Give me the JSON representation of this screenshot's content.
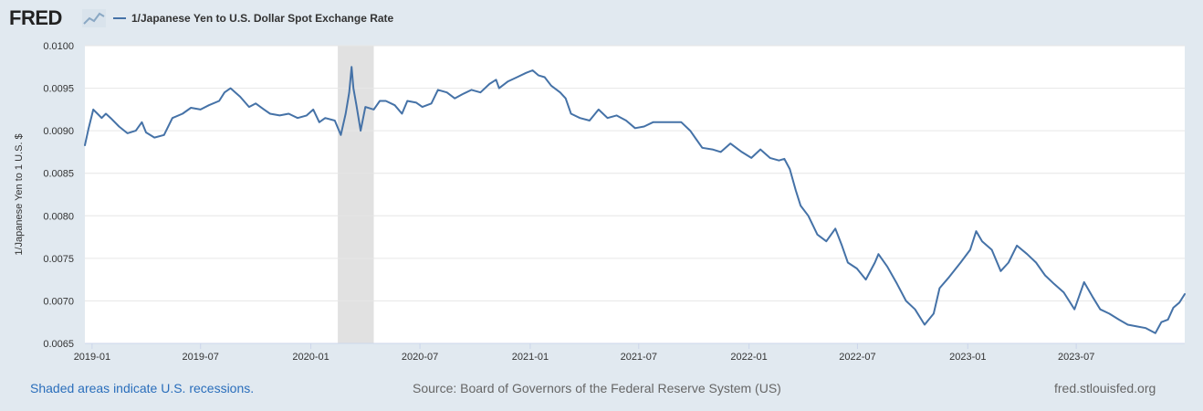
{
  "header": {
    "logo_text": "FRED",
    "logo_icon": "line-chart-icon",
    "legend_label": "1/Japanese Yen to U.S. Dollar Spot Exchange Rate",
    "legend_color": "#4572a7"
  },
  "footer": {
    "recessions_note": "Shaded areas indicate U.S. recessions.",
    "source": "Source: Board of Governors of the Federal Reserve System (US)",
    "site": "fred.stlouisfed.org"
  },
  "colors": {
    "page_background": "#e1e9f0",
    "plot_background": "#ffffff",
    "series": "#4572a7",
    "recession_band": "#e1e1e1",
    "gridline": "#e6e6e6"
  },
  "chart_data": {
    "type": "line",
    "title": "",
    "xlabel": "",
    "ylabel": "1/Japanese Yen to 1 U.S. $",
    "ylim": [
      0.0065,
      0.01
    ],
    "xlim": [
      "2018-12-20",
      "2023-12-29"
    ],
    "yticks": [
      "0.0065",
      "0.0070",
      "0.0075",
      "0.0080",
      "0.0085",
      "0.0090",
      "0.0095",
      "0.0100"
    ],
    "xticks": [
      "2019-01",
      "2019-07",
      "2020-01",
      "2020-07",
      "2021-01",
      "2021-07",
      "2022-01",
      "2022-07",
      "2023-01",
      "2023-07"
    ],
    "grid": true,
    "legend_position": "top-left",
    "recessions": [
      {
        "start": "2020-02-15",
        "end": "2020-04-15"
      }
    ],
    "series": [
      {
        "name": "1/Japanese Yen to U.S. Dollar Spot Exchange Rate",
        "points": [
          [
            "2018-12-20",
            0.00883
          ],
          [
            "2018-12-26",
            0.00902
          ],
          [
            "2019-01-03",
            0.00925
          ],
          [
            "2019-01-10",
            0.0092
          ],
          [
            "2019-01-17",
            0.00915
          ],
          [
            "2019-01-24",
            0.0092
          ],
          [
            "2019-02-01",
            0.00915
          ],
          [
            "2019-02-15",
            0.00905
          ],
          [
            "2019-03-01",
            0.00897
          ],
          [
            "2019-03-15",
            0.009
          ],
          [
            "2019-03-25",
            0.0091
          ],
          [
            "2019-04-01",
            0.00898
          ],
          [
            "2019-04-15",
            0.00892
          ],
          [
            "2019-05-01",
            0.00895
          ],
          [
            "2019-05-15",
            0.00915
          ],
          [
            "2019-06-01",
            0.0092
          ],
          [
            "2019-06-15",
            0.00927
          ],
          [
            "2019-07-01",
            0.00925
          ],
          [
            "2019-07-15",
            0.0093
          ],
          [
            "2019-08-01",
            0.00935
          ],
          [
            "2019-08-10",
            0.00945
          ],
          [
            "2019-08-20",
            0.0095
          ],
          [
            "2019-08-28",
            0.00945
          ],
          [
            "2019-09-05",
            0.0094
          ],
          [
            "2019-09-20",
            0.00928
          ],
          [
            "2019-10-01",
            0.00932
          ],
          [
            "2019-10-15",
            0.00925
          ],
          [
            "2019-10-25",
            0.0092
          ],
          [
            "2019-11-10",
            0.00918
          ],
          [
            "2019-11-25",
            0.0092
          ],
          [
            "2019-12-10",
            0.00915
          ],
          [
            "2019-12-25",
            0.00918
          ],
          [
            "2020-01-05",
            0.00925
          ],
          [
            "2020-01-15",
            0.0091
          ],
          [
            "2020-01-25",
            0.00915
          ],
          [
            "2020-02-10",
            0.00912
          ],
          [
            "2020-02-20",
            0.00895
          ],
          [
            "2020-02-28",
            0.0092
          ],
          [
            "2020-03-05",
            0.00945
          ],
          [
            "2020-03-09",
            0.00975
          ],
          [
            "2020-03-12",
            0.0095
          ],
          [
            "2020-03-17",
            0.0093
          ],
          [
            "2020-03-24",
            0.009
          ],
          [
            "2020-04-01",
            0.00928
          ],
          [
            "2020-04-15",
            0.00925
          ],
          [
            "2020-04-25",
            0.00935
          ],
          [
            "2020-05-05",
            0.00935
          ],
          [
            "2020-05-20",
            0.0093
          ],
          [
            "2020-06-01",
            0.0092
          ],
          [
            "2020-06-10",
            0.00935
          ],
          [
            "2020-06-25",
            0.00933
          ],
          [
            "2020-07-05",
            0.00928
          ],
          [
            "2020-07-20",
            0.00932
          ],
          [
            "2020-07-31",
            0.00948
          ],
          [
            "2020-08-15",
            0.00945
          ],
          [
            "2020-08-28",
            0.00938
          ],
          [
            "2020-09-10",
            0.00943
          ],
          [
            "2020-09-25",
            0.00948
          ],
          [
            "2020-10-10",
            0.00945
          ],
          [
            "2020-10-25",
            0.00955
          ],
          [
            "2020-11-05",
            0.0096
          ],
          [
            "2020-11-10",
            0.0095
          ],
          [
            "2020-11-25",
            0.00958
          ],
          [
            "2020-12-10",
            0.00963
          ],
          [
            "2020-12-25",
            0.00968
          ],
          [
            "2021-01-05",
            0.00971
          ],
          [
            "2021-01-15",
            0.00965
          ],
          [
            "2021-01-25",
            0.00963
          ],
          [
            "2021-02-05",
            0.00953
          ],
          [
            "2021-02-20",
            0.00945
          ],
          [
            "2021-03-01",
            0.00938
          ],
          [
            "2021-03-10",
            0.0092
          ],
          [
            "2021-03-25",
            0.00915
          ],
          [
            "2021-04-10",
            0.00912
          ],
          [
            "2021-04-25",
            0.00925
          ],
          [
            "2021-05-10",
            0.00915
          ],
          [
            "2021-05-25",
            0.00918
          ],
          [
            "2021-06-10",
            0.00912
          ],
          [
            "2021-06-25",
            0.00903
          ],
          [
            "2021-07-10",
            0.00905
          ],
          [
            "2021-07-25",
            0.0091
          ],
          [
            "2021-08-10",
            0.0091
          ],
          [
            "2021-08-25",
            0.0091
          ],
          [
            "2021-09-10",
            0.0091
          ],
          [
            "2021-09-25",
            0.009
          ],
          [
            "2021-10-05",
            0.0089
          ],
          [
            "2021-10-15",
            0.0088
          ],
          [
            "2021-11-01",
            0.00878
          ],
          [
            "2021-11-15",
            0.00875
          ],
          [
            "2021-12-01",
            0.00885
          ],
          [
            "2021-12-20",
            0.00875
          ],
          [
            "2022-01-05",
            0.00868
          ],
          [
            "2022-01-20",
            0.00878
          ],
          [
            "2022-02-05",
            0.00868
          ],
          [
            "2022-02-20",
            0.00865
          ],
          [
            "2022-03-01",
            0.00867
          ],
          [
            "2022-03-10",
            0.00855
          ],
          [
            "2022-03-20",
            0.0083
          ],
          [
            "2022-03-28",
            0.00812
          ],
          [
            "2022-04-10",
            0.008
          ],
          [
            "2022-04-25",
            0.00778
          ],
          [
            "2022-05-10",
            0.0077
          ],
          [
            "2022-05-25",
            0.00785
          ],
          [
            "2022-06-05",
            0.00765
          ],
          [
            "2022-06-15",
            0.00745
          ],
          [
            "2022-06-30",
            0.00738
          ],
          [
            "2022-07-15",
            0.00725
          ],
          [
            "2022-07-30",
            0.00745
          ],
          [
            "2022-08-05",
            0.00755
          ],
          [
            "2022-08-20",
            0.0074
          ],
          [
            "2022-09-05",
            0.0072
          ],
          [
            "2022-09-20",
            0.007
          ],
          [
            "2022-10-05",
            0.0069
          ],
          [
            "2022-10-21",
            0.00672
          ],
          [
            "2022-11-05",
            0.00685
          ],
          [
            "2022-11-15",
            0.00715
          ],
          [
            "2022-12-01",
            0.00728
          ],
          [
            "2022-12-20",
            0.00745
          ],
          [
            "2023-01-05",
            0.0076
          ],
          [
            "2023-01-15",
            0.00782
          ],
          [
            "2023-01-25",
            0.0077
          ],
          [
            "2023-02-10",
            0.0076
          ],
          [
            "2023-02-25",
            0.00735
          ],
          [
            "2023-03-10",
            0.00745
          ],
          [
            "2023-03-24",
            0.00765
          ],
          [
            "2023-04-10",
            0.00755
          ],
          [
            "2023-04-25",
            0.00745
          ],
          [
            "2023-05-10",
            0.0073
          ],
          [
            "2023-05-25",
            0.0072
          ],
          [
            "2023-06-10",
            0.0071
          ],
          [
            "2023-06-28",
            0.0069
          ],
          [
            "2023-07-14",
            0.00722
          ],
          [
            "2023-07-28",
            0.00705
          ],
          [
            "2023-08-10",
            0.0069
          ],
          [
            "2023-08-25",
            0.00685
          ],
          [
            "2023-09-10",
            0.00678
          ],
          [
            "2023-09-25",
            0.00672
          ],
          [
            "2023-10-10",
            0.0067
          ],
          [
            "2023-10-25",
            0.00668
          ],
          [
            "2023-11-10",
            0.00662
          ],
          [
            "2023-11-20",
            0.00675
          ],
          [
            "2023-12-01",
            0.00678
          ],
          [
            "2023-12-10",
            0.00692
          ],
          [
            "2023-12-20",
            0.00698
          ],
          [
            "2023-12-29",
            0.00708
          ]
        ]
      }
    ]
  }
}
